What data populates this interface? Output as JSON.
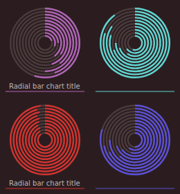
{
  "chart_data": [
    {
      "type": "bar",
      "title": "Radial bar chart title",
      "color": "#b064b8",
      "categories": [
        null,
        null,
        null,
        null,
        null,
        null,
        null,
        null,
        null,
        null
      ],
      "values": [
        20,
        30,
        25,
        40,
        35,
        45,
        40,
        50,
        45,
        55
      ],
      "ylim": [
        0,
        100
      ],
      "tick_labels": false
    },
    {
      "type": "bar",
      "color": "#5fd6d2",
      "categories": [
        null,
        null,
        null,
        null,
        null,
        null,
        null,
        null,
        null,
        null
      ],
      "values": [
        55,
        65,
        60,
        70,
        75,
        70,
        80,
        85,
        80,
        90
      ],
      "ylim": [
        0,
        100
      ],
      "tick_labels": false
    },
    {
      "type": "bar",
      "title": "Radial bar chart title",
      "color": "#d2322e",
      "categories": [
        null,
        null,
        null,
        null,
        null,
        null,
        null,
        null,
        null,
        null
      ],
      "values": [
        90,
        92,
        94,
        93,
        95,
        96,
        95,
        97,
        96,
        98
      ],
      "ylim": [
        0,
        100
      ],
      "tick_labels": false
    },
    {
      "type": "bar",
      "color": "#5a50d8",
      "categories": [
        null,
        null,
        null,
        null,
        null,
        null,
        null,
        null,
        null,
        null
      ],
      "values": [
        50,
        60,
        55,
        65,
        70,
        62,
        75,
        68,
        72,
        80
      ],
      "ylim": [
        0,
        100
      ],
      "tick_labels": false
    }
  ]
}
